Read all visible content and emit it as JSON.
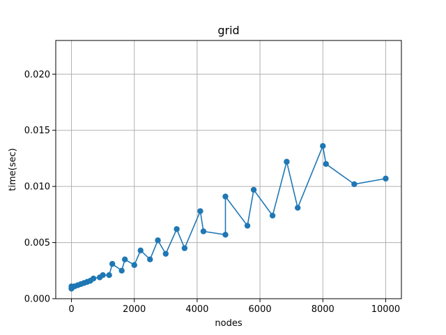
{
  "chart_data": {
    "type": "line",
    "title": "grid",
    "xlabel": "nodes",
    "ylabel": "time(sec)",
    "xlim": [
      -500,
      10500
    ],
    "ylim": [
      0,
      0.023
    ],
    "xticks": [
      0,
      2000,
      4000,
      6000,
      8000,
      10000
    ],
    "xtick_labels": [
      "0",
      "2000",
      "4000",
      "6000",
      "8000",
      "10000"
    ],
    "yticks": [
      0,
      0.005,
      0.01,
      0.015,
      0.02
    ],
    "ytick_labels": [
      "0.000",
      "0.005",
      "0.010",
      "0.015",
      "0.020"
    ],
    "grid": true,
    "color": "#1f77b4",
    "markers": "circle",
    "series": [
      {
        "x": [
          0,
          0,
          100,
          200,
          300,
          400,
          500,
          600,
          700,
          900,
          1000,
          1200,
          1300,
          1600,
          1700,
          2000,
          2200,
          2500,
          2750,
          3000,
          3350,
          3600,
          4100,
          4200,
          4900,
          4900,
          5600,
          5800,
          6400,
          6850,
          7200,
          8000,
          8100,
          9000,
          10000
        ],
        "y": [
          0.0009,
          0.0011,
          0.0011,
          0.0012,
          0.0013,
          0.0014,
          0.0015,
          0.0016,
          0.0018,
          0.0019,
          0.0021,
          0.0021,
          0.0031,
          0.0025,
          0.0035,
          0.003,
          0.0043,
          0.0035,
          0.0052,
          0.004,
          0.0062,
          0.0045,
          0.0078,
          0.006,
          0.0057,
          0.0091,
          0.0065,
          0.0097,
          0.0074,
          0.0122,
          0.0081,
          0.0136,
          0.012,
          0.0102,
          0.0107
        ]
      }
    ]
  }
}
